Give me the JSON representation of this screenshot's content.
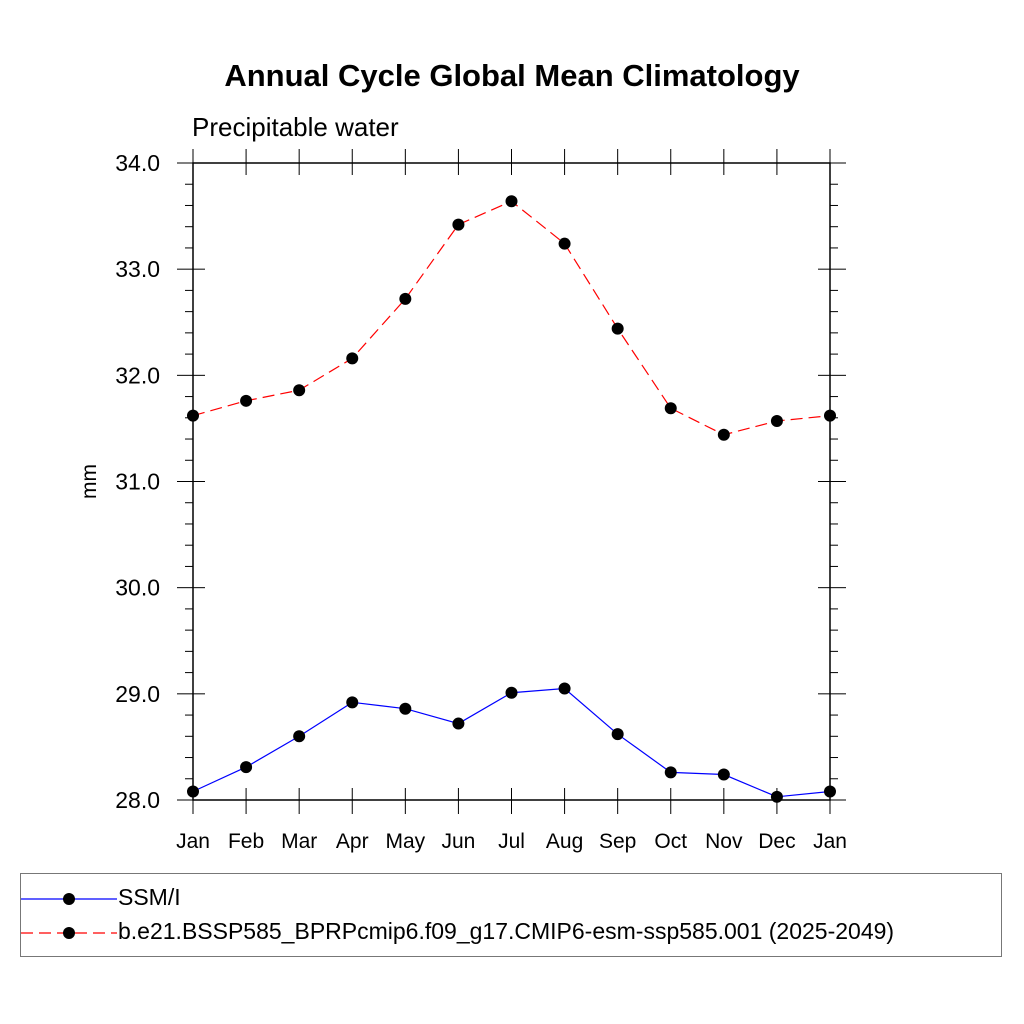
{
  "title": "Annual Cycle Global Mean Climatology",
  "subtitle": "Precipitable water",
  "chart_data": {
    "type": "line",
    "ylabel": "mm",
    "xlabel": "",
    "categories": [
      "Jan",
      "Feb",
      "Mar",
      "Apr",
      "May",
      "Jun",
      "Jul",
      "Aug",
      "Sep",
      "Oct",
      "Nov",
      "Dec",
      "Jan"
    ],
    "ylim": [
      28.0,
      34.0
    ],
    "yticks": [
      "28.0",
      "29.0",
      "30.0",
      "31.0",
      "32.0",
      "33.0",
      "34.0"
    ],
    "grid": false,
    "legend_position": "bottom",
    "series": [
      {
        "name": "SSM/I",
        "color": "#0000ff",
        "style": "solid",
        "marker": "filled-circle",
        "values": [
          28.08,
          28.31,
          28.6,
          28.92,
          28.86,
          28.72,
          29.01,
          29.05,
          28.62,
          28.26,
          28.24,
          28.03,
          28.08
        ]
      },
      {
        "name": "b.e21.BSSP585_BPRPcmip6.f09_g17.CMIP6-esm-ssp585.001 (2025-2049)",
        "color": "#ff0000",
        "style": "dashed",
        "marker": "filled-circle",
        "values": [
          31.62,
          31.76,
          31.86,
          32.16,
          32.72,
          33.42,
          33.64,
          33.24,
          32.44,
          31.69,
          31.44,
          31.57,
          31.62
        ]
      }
    ]
  }
}
